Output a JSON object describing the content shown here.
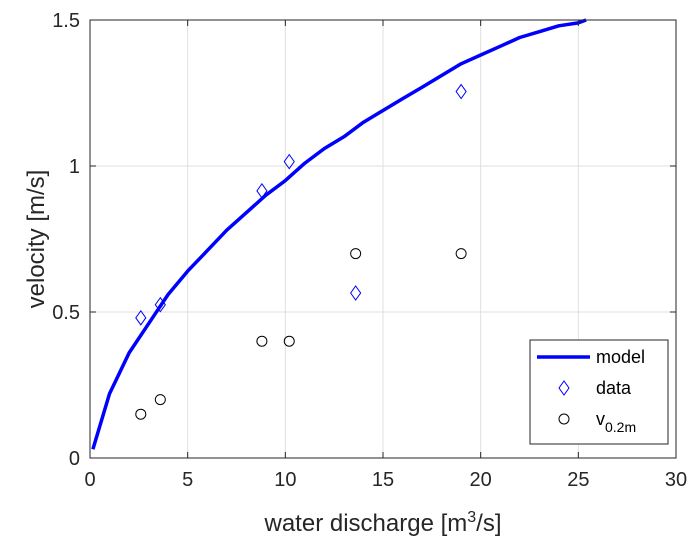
{
  "chart_data": {
    "type": "scatter",
    "title": "",
    "xlabel": "water discharge [m",
    "xlabel_sup": "3",
    "xlabel_tail": "/s]",
    "ylabel": "velocity [m/s]",
    "xlim": [
      0,
      30
    ],
    "ylim": [
      0,
      1.5
    ],
    "xticks": [
      0,
      5,
      10,
      15,
      20,
      25,
      30
    ],
    "xtick_labels": [
      "0",
      "5",
      "10",
      "15",
      "20",
      "25",
      "30"
    ],
    "yticks": [
      0,
      0.5,
      1,
      1.5
    ],
    "ytick_labels": [
      "0",
      "0.5",
      "1",
      "1.5"
    ],
    "grid": true,
    "legend_position": "bottom-right",
    "series": [
      {
        "name": "model",
        "kind": "line",
        "color": "#0000ff",
        "x": [
          0.15,
          1,
          2,
          3,
          4,
          5,
          6,
          7,
          8,
          9,
          10,
          11,
          12,
          13,
          14,
          15,
          16,
          17,
          18,
          19,
          20,
          21,
          22,
          23,
          24,
          25,
          25.4
        ],
        "y": [
          0.03,
          0.22,
          0.36,
          0.46,
          0.56,
          0.64,
          0.71,
          0.78,
          0.84,
          0.9,
          0.95,
          1.01,
          1.06,
          1.1,
          1.15,
          1.19,
          1.23,
          1.27,
          1.31,
          1.35,
          1.38,
          1.41,
          1.44,
          1.46,
          1.48,
          1.49,
          1.5
        ]
      },
      {
        "name": "data",
        "kind": "marker",
        "marker": "diamond",
        "color": "#0000ff",
        "x": [
          2.6,
          3.6,
          8.8,
          10.2,
          13.6,
          19.0
        ],
        "y": [
          0.48,
          0.525,
          0.915,
          1.015,
          0.565,
          1.255
        ]
      },
      {
        "name": "v",
        "name_sub": "0.2m",
        "kind": "marker",
        "marker": "circle",
        "color": "#000000",
        "x": [
          2.6,
          3.6,
          8.8,
          10.2,
          13.6,
          19.0
        ],
        "y": [
          0.15,
          0.2,
          0.4,
          0.4,
          0.7,
          0.7
        ]
      }
    ]
  }
}
